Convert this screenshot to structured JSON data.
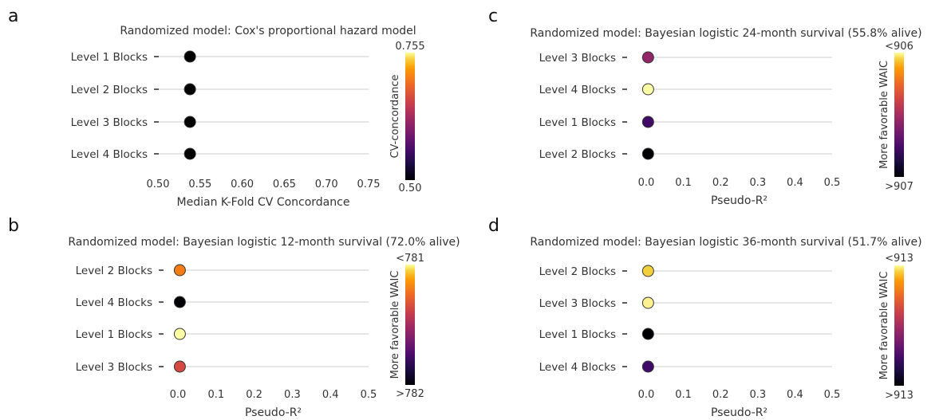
{
  "chart_data": [
    {
      "panel": "a",
      "type": "scatter",
      "title": "Randomized model: Cox's proportional hazard model",
      "xlabel": "Median K-Fold CV Concordance",
      "xlim": [
        0.5,
        0.75
      ],
      "xticks": [
        "0.50",
        "0.55",
        "0.60",
        "0.65",
        "0.70",
        "0.75"
      ],
      "categories": [
        "Level 1 Blocks",
        "Level 2 Blocks",
        "Level 3 Blocks",
        "Level 4 Blocks"
      ],
      "values": [
        0.538,
        0.538,
        0.538,
        0.538
      ],
      "point_colors": [
        "#000000",
        "#000000",
        "#000000",
        "#000000"
      ],
      "colorbar": {
        "label": "CV-concordance",
        "top": "0.755",
        "bottom": "0.50",
        "colormap": "inferno"
      },
      "grid": true
    },
    {
      "panel": "b",
      "type": "scatter",
      "title": "Randomized model: Bayesian logistic 12-month survival (72.0% alive)",
      "xlabel": "Pseudo-R²",
      "xlim": [
        0,
        0.5
      ],
      "xticks": [
        "0.0",
        "0.1",
        "0.2",
        "0.3",
        "0.4",
        "0.5"
      ],
      "categories": [
        "Level 2 Blocks",
        "Level 4 Blocks",
        "Level 1 Blocks",
        "Level 3 Blocks"
      ],
      "values": [
        0.005,
        0.005,
        0.005,
        0.005
      ],
      "point_colors": [
        "#f57d15",
        "#000004",
        "#fcffa4",
        "#d44842"
      ],
      "colorbar": {
        "label": "More favorable WAIC",
        "top": "<781",
        "bottom": ">782",
        "colormap": "inferno"
      },
      "grid": true
    },
    {
      "panel": "c",
      "type": "scatter",
      "title": "Randomized model: Bayesian logistic 24-month survival (55.8% alive)",
      "xlabel": "Pseudo-R²",
      "xlim": [
        0,
        0.5
      ],
      "xticks": [
        "0.0",
        "0.1",
        "0.2",
        "0.3",
        "0.4",
        "0.5"
      ],
      "categories": [
        "Level 3 Blocks",
        "Level 4 Blocks",
        "Level 1 Blocks",
        "Level 2 Blocks"
      ],
      "values": [
        0.005,
        0.005,
        0.005,
        0.005
      ],
      "point_colors": [
        "#932667",
        "#fcffa4",
        "#420a68",
        "#000004"
      ],
      "colorbar": {
        "label": "More favorable WAIC",
        "top": "<906",
        "bottom": ">907",
        "colormap": "inferno"
      },
      "grid": true
    },
    {
      "panel": "d",
      "type": "scatter",
      "title": "Randomized model: Bayesian logistic 36-month survival (51.7% alive)",
      "xlabel": "Pseudo-R²",
      "xlim": [
        0,
        0.5
      ],
      "xticks": [
        "0.0",
        "0.1",
        "0.2",
        "0.3",
        "0.4",
        "0.5"
      ],
      "categories": [
        "Level 2 Blocks",
        "Level 3 Blocks",
        "Level 1 Blocks",
        "Level 4 Blocks"
      ],
      "values": [
        0.005,
        0.005,
        0.005,
        0.005
      ],
      "point_colors": [
        "#f2d03c",
        "#fcf190",
        "#000004",
        "#420a68"
      ],
      "colorbar": {
        "label": "More favorable WAIC",
        "top": "<913",
        "bottom": ">913",
        "colormap": "inferno"
      },
      "grid": true
    }
  ]
}
